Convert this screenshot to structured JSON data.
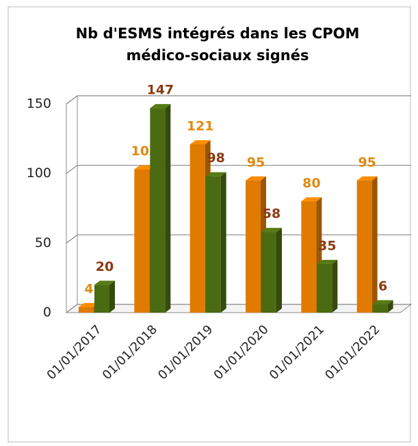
{
  "chart_data": {
    "type": "bar3d",
    "title": [
      "Nb d'ESMS intégrés dans les CPOM",
      "médico-sociaux signés"
    ],
    "categories": [
      "01/01/2017",
      "01/01/2018",
      "01/01/2019",
      "01/01/2020",
      "01/01/2021",
      "01/01/2022"
    ],
    "series": [
      {
        "color": "#e07b00",
        "label_color": "#e08a10",
        "values": [
          4,
          103,
          121,
          95,
          80,
          95
        ]
      },
      {
        "color": "#4b6b12",
        "label_color": "#8b3a10",
        "values": [
          20,
          147,
          98,
          58,
          35,
          6
        ]
      }
    ],
    "ylim": [
      0,
      150
    ],
    "yticks": [
      0,
      50,
      100,
      150
    ],
    "grid": true
  }
}
